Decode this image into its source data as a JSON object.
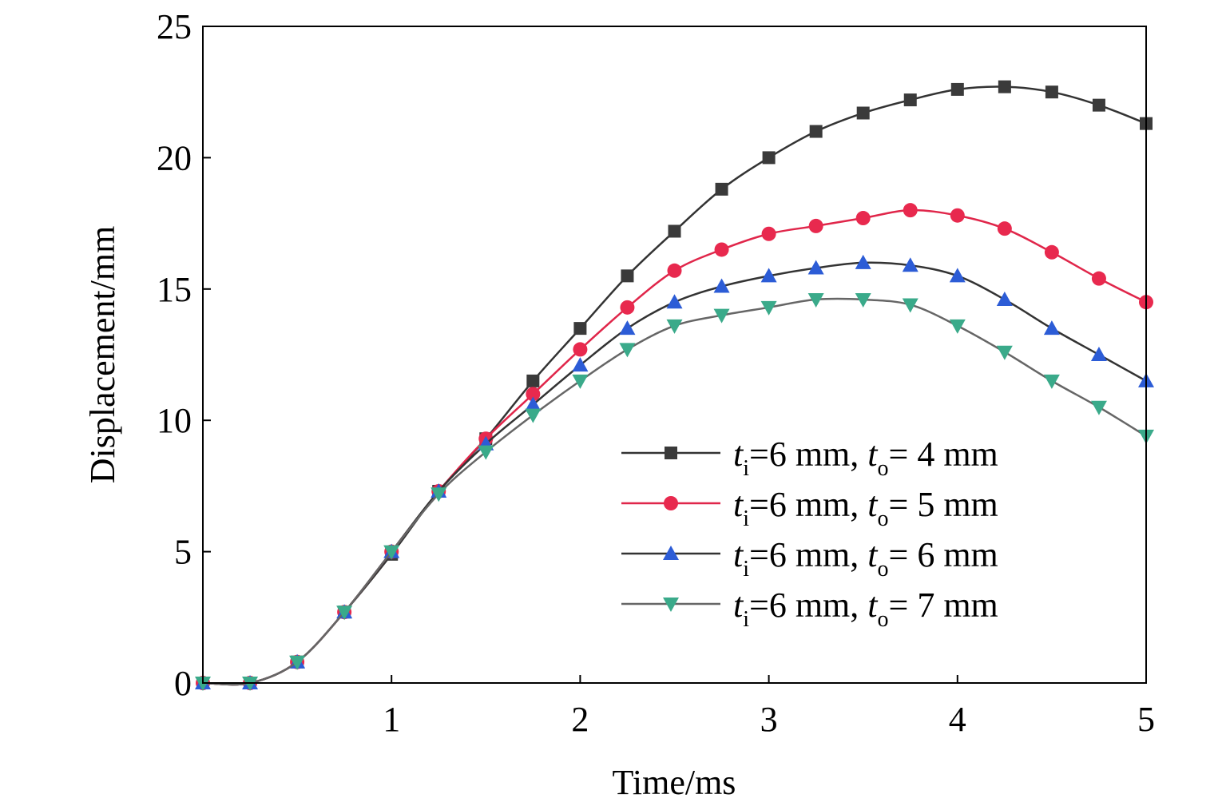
{
  "chart_data": {
    "type": "line",
    "xlabel": "Time/ms",
    "ylabel": "Displacement/mm",
    "xlim": [
      0,
      5
    ],
    "ylim": [
      0,
      25
    ],
    "xticks": [
      "1",
      "2",
      "3",
      "4",
      "5"
    ],
    "yticks": [
      "0",
      "5",
      "10",
      "15",
      "20",
      "25"
    ],
    "grid": false,
    "legend_position": "bottom-right",
    "x": [
      0,
      0.25,
      0.5,
      0.75,
      1.0,
      1.25,
      1.5,
      1.75,
      2.0,
      2.25,
      2.5,
      2.75,
      3.0,
      3.25,
      3.5,
      3.75,
      4.0,
      4.25,
      4.5,
      4.75,
      5.0
    ],
    "series": [
      {
        "legend": {
          "a": "t",
          "a_sub": "i",
          "b": "=6 mm, ",
          "c": "t",
          "c_sub": "o",
          "d": "= 4 mm"
        },
        "marker": "square",
        "color": "#333333",
        "marker_color": "#3a3a3a",
        "values": [
          0,
          0,
          0.8,
          2.7,
          4.9,
          7.3,
          9.3,
          11.5,
          13.5,
          15.5,
          17.2,
          18.8,
          20.0,
          21.0,
          21.7,
          22.2,
          22.6,
          22.7,
          22.5,
          22.0,
          21.3
        ]
      },
      {
        "legend": {
          "a": "t",
          "a_sub": "i",
          "b": "=6 mm, ",
          "c": "t",
          "c_sub": "o",
          "d": "= 5 mm"
        },
        "marker": "circle",
        "color": "#e0264a",
        "marker_color": "#e8294e",
        "values": [
          0,
          0,
          0.8,
          2.7,
          5.0,
          7.3,
          9.3,
          11.0,
          12.7,
          14.3,
          15.7,
          16.5,
          17.1,
          17.4,
          17.7,
          18.0,
          17.8,
          17.3,
          16.4,
          15.4,
          14.5
        ]
      },
      {
        "legend": {
          "a": "t",
          "a_sub": "i",
          "b": "=6 mm, ",
          "c": "t",
          "c_sub": "o",
          "d": "= 6 mm"
        },
        "marker": "triangle-up",
        "color": "#333333",
        "marker_color": "#2c5cd6",
        "values": [
          0,
          0,
          0.8,
          2.7,
          5.0,
          7.3,
          9.1,
          10.6,
          12.1,
          13.5,
          14.5,
          15.1,
          15.5,
          15.8,
          16.0,
          15.9,
          15.5,
          14.6,
          13.5,
          12.5,
          11.5
        ]
      },
      {
        "legend": {
          "a": "t",
          "a_sub": "i",
          "b": "=6 mm, ",
          "c": "t",
          "c_sub": "o",
          "d": "= 7 mm"
        },
        "marker": "triangle-down",
        "color": "#666666",
        "marker_color": "#3aaa8a",
        "values": [
          0,
          0,
          0.8,
          2.7,
          5.0,
          7.2,
          8.8,
          10.2,
          11.5,
          12.7,
          13.6,
          14.0,
          14.3,
          14.6,
          14.6,
          14.4,
          13.6,
          12.6,
          11.5,
          10.5,
          9.4
        ]
      }
    ]
  }
}
